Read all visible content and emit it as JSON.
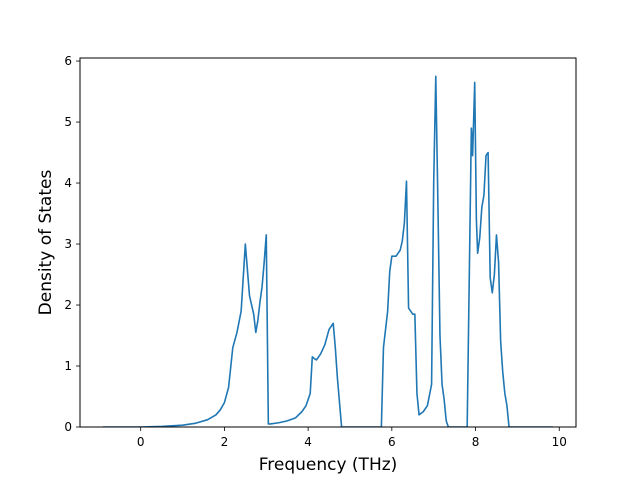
{
  "chart_data": {
    "type": "line",
    "title": "",
    "xlabel": "Frequency (THz)",
    "ylabel": "Density of States",
    "xlim": [
      -1.45,
      10.4
    ],
    "ylim": [
      0,
      6.05
    ],
    "xticks": [
      0,
      2,
      4,
      6,
      8,
      10
    ],
    "yticks": [
      0,
      1,
      2,
      3,
      4,
      5,
      6
    ],
    "grid": false,
    "legend": "none",
    "line_color": "#1f77b4",
    "series": [
      {
        "x": [
          -0.9,
          -0.5,
          0.0,
          0.5,
          1.0,
          1.3,
          1.6,
          1.8,
          1.9,
          2.0,
          2.1,
          2.2,
          2.3,
          2.4,
          2.5,
          2.6,
          2.7,
          2.75,
          2.8,
          2.85,
          2.9,
          2.95,
          3.0,
          3.05,
          3.1,
          3.3,
          3.5,
          3.7,
          3.85,
          3.95,
          4.05,
          4.1,
          4.15,
          4.2,
          4.3,
          4.4,
          4.5,
          4.6,
          4.65,
          4.7,
          4.75,
          4.8,
          5.0,
          5.4,
          5.75,
          5.8,
          5.9,
          5.95,
          6.0,
          6.1,
          6.2,
          6.25,
          6.3,
          6.35,
          6.4,
          6.5,
          6.55,
          6.6,
          6.65,
          6.75,
          6.85,
          6.95,
          7.0,
          7.05,
          7.1,
          7.15,
          7.2,
          7.25,
          7.3,
          7.35,
          7.5,
          7.8,
          7.9,
          7.93,
          7.98,
          8.02,
          8.05,
          8.1,
          8.15,
          8.2,
          8.25,
          8.3,
          8.35,
          8.4,
          8.45,
          8.5,
          8.55,
          8.6,
          8.65,
          8.7,
          8.75,
          8.8,
          9.0,
          9.5,
          9.85
        ],
        "values": [
          0.0,
          0.0,
          0.0,
          0.01,
          0.03,
          0.06,
          0.12,
          0.2,
          0.28,
          0.4,
          0.65,
          1.3,
          1.55,
          1.9,
          3.0,
          2.15,
          1.85,
          1.55,
          1.75,
          2.05,
          2.3,
          2.7,
          3.15,
          0.05,
          0.05,
          0.07,
          0.1,
          0.15,
          0.25,
          0.35,
          0.55,
          1.15,
          1.12,
          1.1,
          1.2,
          1.35,
          1.6,
          1.7,
          1.3,
          0.8,
          0.4,
          0.0,
          0.0,
          0.0,
          0.0,
          1.3,
          1.9,
          2.55,
          2.8,
          2.8,
          2.9,
          3.05,
          3.35,
          4.03,
          1.95,
          1.85,
          1.85,
          0.55,
          0.2,
          0.25,
          0.35,
          0.7,
          4.0,
          5.75,
          3.7,
          1.5,
          0.7,
          0.45,
          0.1,
          0.0,
          0.0,
          0.0,
          4.9,
          4.45,
          5.65,
          3.4,
          2.85,
          3.1,
          3.6,
          3.8,
          4.45,
          4.5,
          2.45,
          2.2,
          2.5,
          3.15,
          2.7,
          1.4,
          0.9,
          0.55,
          0.35,
          0.0,
          0.0,
          0.0,
          0.0
        ]
      }
    ]
  }
}
